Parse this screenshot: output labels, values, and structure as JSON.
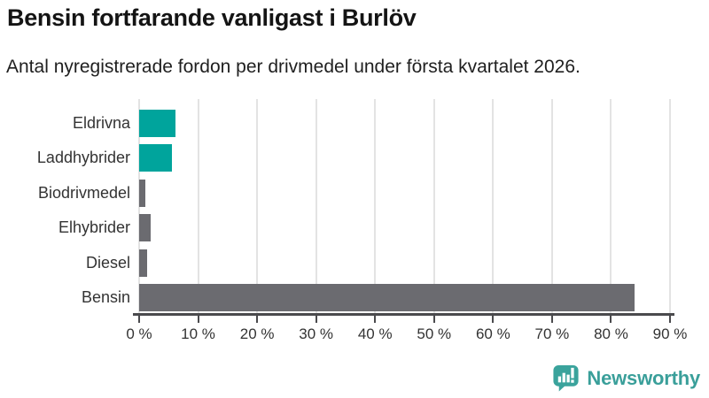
{
  "chart_data": {
    "type": "bar",
    "orientation": "horizontal",
    "title": "Bensin fortfarande vanligast i Burlöv",
    "subtitle": "Antal nyregistrerade fordon per drivmedel under första kvartalet 2026.",
    "categories": [
      "Eldrivna",
      "Laddhybrider",
      "Biodrivmedel",
      "Elhybrider",
      "Diesel",
      "Bensin"
    ],
    "values": [
      6.2,
      5.6,
      1.0,
      1.9,
      1.4,
      84.0
    ],
    "unit": "%",
    "bar_colors": [
      "#00a49c",
      "#00a49c",
      "#6b6b70",
      "#6b6b70",
      "#6b6b70",
      "#6b6b70"
    ],
    "accent_teal": "#00a49c",
    "neutral_gray": "#6b6b70",
    "xlim": [
      0,
      90
    ],
    "x_ticks": [
      0,
      10,
      20,
      30,
      40,
      50,
      60,
      70,
      80,
      90
    ],
    "x_tick_suffix": " %",
    "grid": "vertical",
    "gridline_color": "#e3e3e3",
    "axis_color": "#4a4a4d",
    "legend": "none"
  },
  "branding": {
    "logo_text": "Newsworthy",
    "logo_icon": "newsworthy-speech-bubble-bar-chart-icon",
    "logo_color": "#3a9f9a"
  }
}
